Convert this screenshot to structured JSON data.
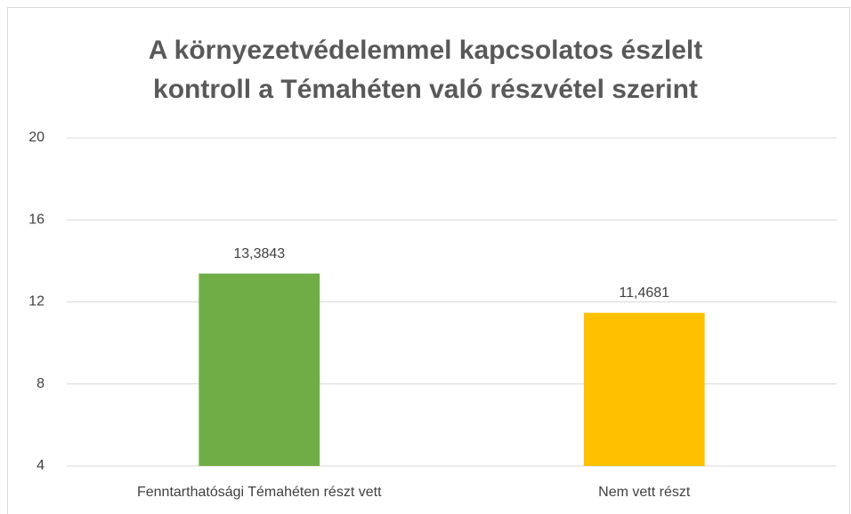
{
  "chart_data": {
    "type": "bar",
    "title": [
      "A környezetvédelemmel kapcsolatos észlelt",
      "kontroll a Témahéten való részvétel szerint"
    ],
    "categories": [
      "Fenntarthatósági Témahéten részt vett",
      "Nem vett részt"
    ],
    "values": [
      13.3843,
      11.4681
    ],
    "value_labels": [
      "13,3843",
      "11,4681"
    ],
    "colors": [
      "#70ad47",
      "#ffc000"
    ],
    "ylim": [
      4,
      20
    ],
    "yticks": [
      4,
      8,
      12,
      16,
      20
    ],
    "grid": true
  }
}
